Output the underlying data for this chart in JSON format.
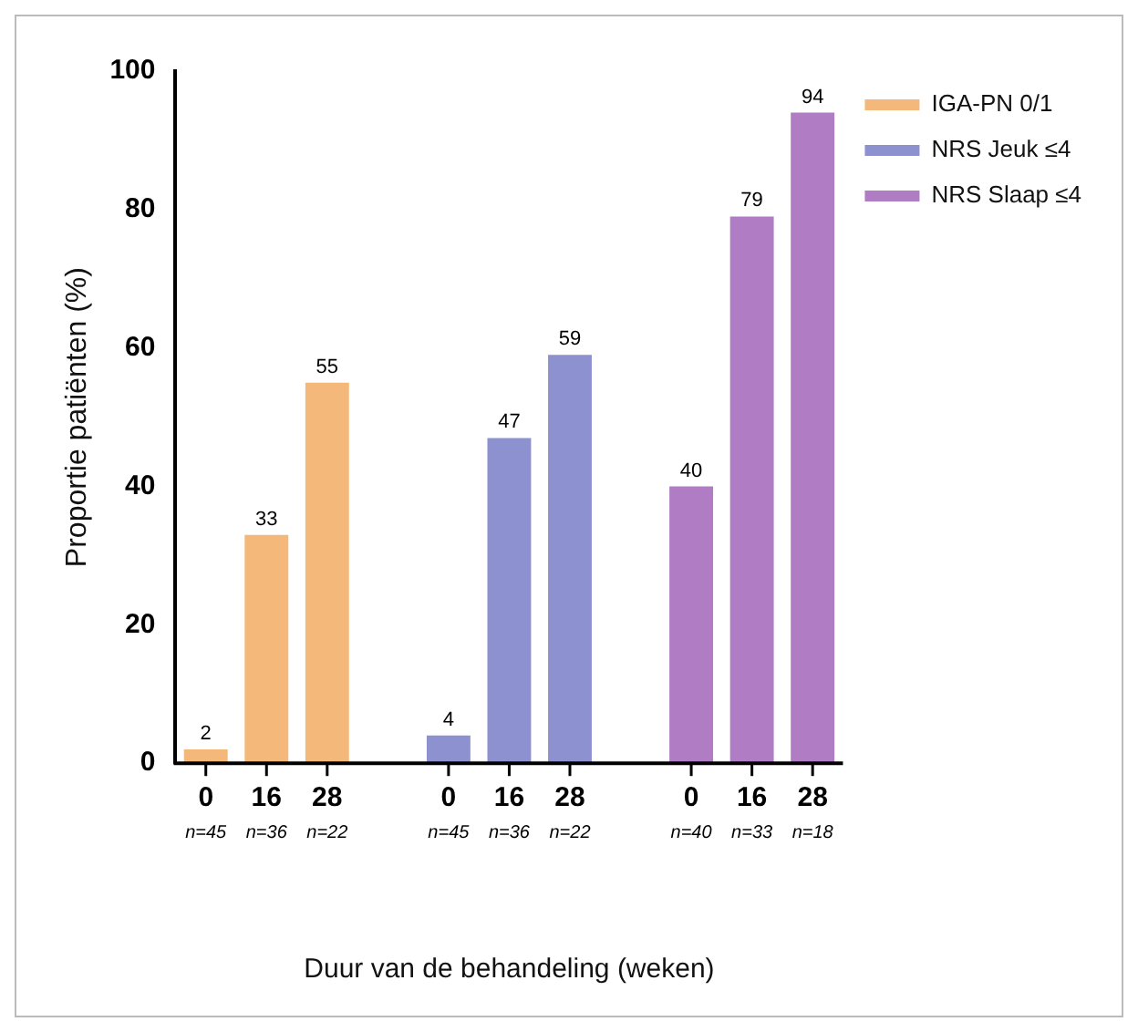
{
  "chart_data": {
    "type": "bar",
    "xlabel": "Duur van de behandeling (weken)",
    "ylabel": "Proportie patiënten (%)",
    "categories": [
      "0\nn=45",
      "16\nn=36",
      "28\nn=22",
      null,
      "0\nn=45",
      "16\nn=36",
      "28\nn=22",
      null,
      "0\nn=40",
      "16\nn=33",
      "28\nn=18"
    ],
    "series": [
      {
        "name": "IGA-PN 0/1",
        "color": "#f4b87b",
        "values": [
          2,
          33,
          55,
          null,
          null,
          null,
          null,
          null,
          null,
          null,
          null
        ]
      },
      {
        "name": "NRS Jeuk ≤4",
        "color": "#8d91d0",
        "values": [
          null,
          null,
          null,
          null,
          4,
          47,
          59,
          null,
          null,
          null,
          null
        ]
      },
      {
        "name": "NRS Slaap ≤4",
        "color": "#b07cc4",
        "values": [
          null,
          null,
          null,
          null,
          null,
          null,
          null,
          null,
          40,
          79,
          94
        ]
      }
    ],
    "ylim": [
      0,
      100
    ],
    "yticks": [
      0,
      20,
      40,
      60,
      80,
      100
    ],
    "grid": false,
    "legend": "top right",
    "data_labels": true
  }
}
